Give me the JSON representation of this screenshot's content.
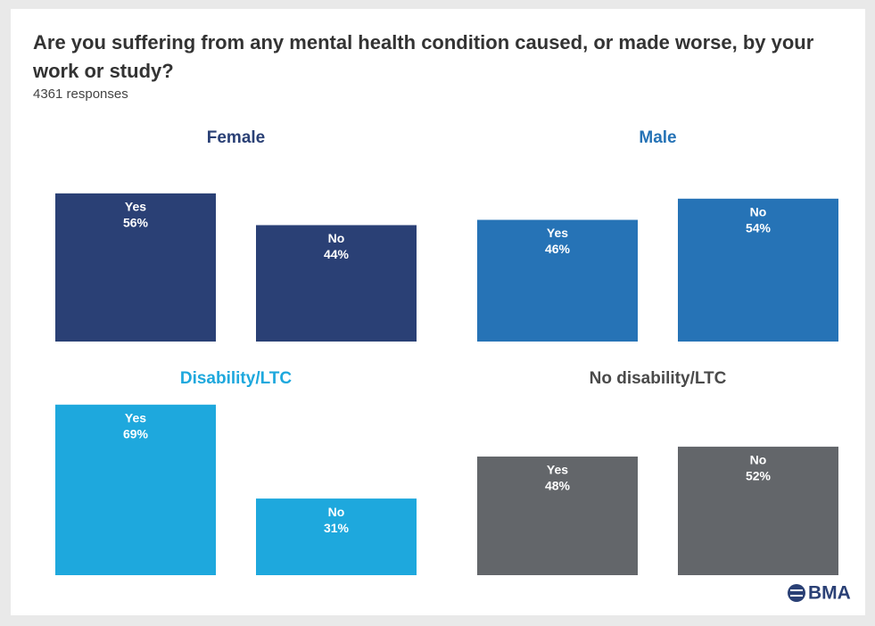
{
  "title": "Are you suffering from any mental health condition caused, or made worse, by your work or study?",
  "subtitle": "4361 responses",
  "logo": "BMA",
  "chart_data": [
    {
      "type": "bar",
      "title": "Female",
      "categories": [
        "Yes",
        "No"
      ],
      "values": [
        56,
        44
      ],
      "value_labels": [
        "56%",
        "44%"
      ],
      "color": "#2a4075",
      "title_color": "#2a4075",
      "ylim": [
        0,
        60
      ]
    },
    {
      "type": "bar",
      "title": "Male",
      "categories": [
        "Yes",
        "No"
      ],
      "values": [
        46,
        54
      ],
      "value_labels": [
        "46%",
        "54%"
      ],
      "color": "#2673b6",
      "title_color": "#2673b6",
      "ylim": [
        0,
        60
      ]
    },
    {
      "type": "bar",
      "title": "Disability/LTC",
      "categories": [
        "Yes",
        "No"
      ],
      "values": [
        69,
        31
      ],
      "value_labels": [
        "69%",
        "31%"
      ],
      "color": "#1ea8dd",
      "title_color": "#1ea8dd",
      "ylim": [
        0,
        70
      ]
    },
    {
      "type": "bar",
      "title": "No disability/LTC",
      "categories": [
        "Yes",
        "No"
      ],
      "values": [
        48,
        52
      ],
      "value_labels": [
        "48%",
        "52%"
      ],
      "color": "#63666a",
      "title_color": "#4a4a4a",
      "ylim": [
        0,
        70
      ]
    }
  ]
}
